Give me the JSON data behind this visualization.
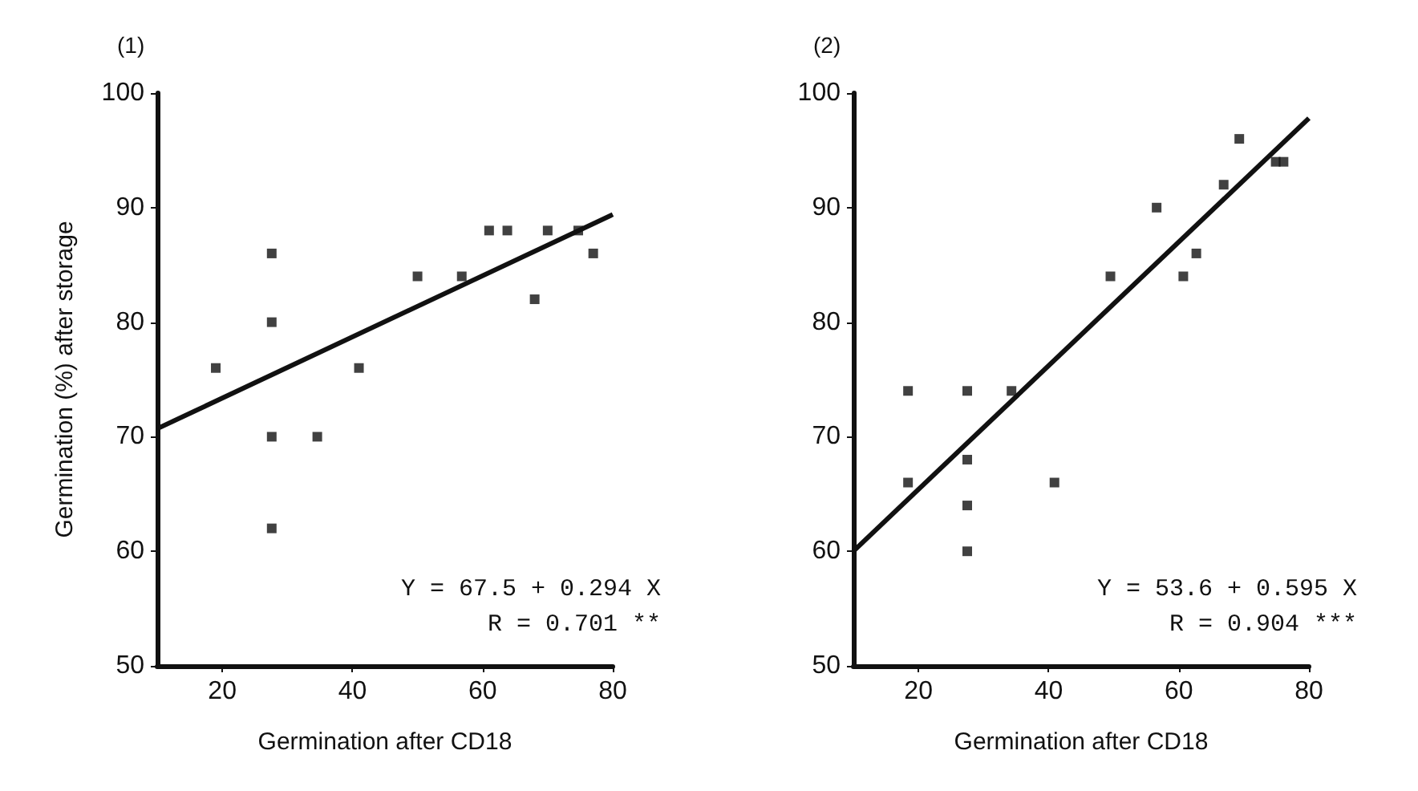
{
  "chart_data": [
    {
      "type": "scatter",
      "title": "(1)",
      "xlabel": "Germination after CD18",
      "ylabel": "Germination (%) after storage",
      "xlim": [
        10,
        80
      ],
      "xticks": [
        20,
        40,
        60,
        80
      ],
      "ylim": [
        50,
        100
      ],
      "yticks": [
        50,
        60,
        70,
        80,
        90,
        100
      ],
      "grid": false,
      "marker": "square",
      "series": [
        {
          "color": "#111111",
          "x": [
            19,
            27.6,
            27.6,
            27.6,
            27.6,
            34.6,
            41,
            50,
            56.8,
            61,
            63.8,
            70,
            68,
            74.7,
            77
          ],
          "values": [
            76,
            86,
            80,
            70,
            62,
            70,
            76,
            84,
            84,
            88,
            88,
            88,
            82,
            88,
            86
          ]
        },
        {
          "type": "line",
          "marker": "none",
          "color": "#111111",
          "x": [
            10,
            80
          ],
          "values": [
            70.7,
            89.4
          ]
        }
      ],
      "annotations": [
        "Y = 67.5 + 0.294 X",
        "R = 0.701 **"
      ]
    },
    {
      "type": "scatter",
      "title": "(2)",
      "xlabel": "Germination after CD18",
      "xlim": [
        10,
        80
      ],
      "xticks": [
        20,
        40,
        60,
        80
      ],
      "ylim": [
        50,
        100
      ],
      "yticks": [
        50,
        60,
        70,
        80,
        90,
        100
      ],
      "grid": false,
      "marker": "square",
      "series": [
        {
          "color": "#111111",
          "x": [
            18.4,
            27.5,
            34.3,
            18.4,
            27.5,
            27.5,
            27.5,
            40.9,
            49.5,
            56.6,
            60.7,
            62.7,
            66.9,
            69.3,
            74.9,
            76.1
          ],
          "values": [
            74,
            74,
            74,
            66,
            68,
            64,
            60,
            66,
            84,
            90,
            84,
            86,
            92,
            96,
            94,
            94
          ]
        },
        {
          "type": "line",
          "marker": "none",
          "color": "#111111",
          "x": [
            10,
            80
          ],
          "values": [
            60,
            97.8
          ]
        }
      ],
      "annotations": [
        "Y = 53.6 + 0.595 X",
        "R = 0.904 ***"
      ]
    }
  ]
}
